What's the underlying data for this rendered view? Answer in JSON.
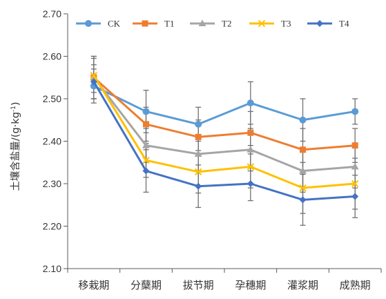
{
  "chart_data": {
    "type": "line",
    "title": "",
    "xlabel": "",
    "ylabel": "土壤含盐量/(g·kg",
    "ylabel_sup": "-1",
    "ylabel_end": ")",
    "ylim": [
      2.1,
      2.7
    ],
    "yticks": [
      "2.10",
      "2.20",
      "2.30",
      "2.40",
      "2.50",
      "2.60",
      "2.70"
    ],
    "categories": [
      "移栽期",
      "分蘖期",
      "拔节期",
      "孕穗期",
      "灌浆期",
      "成熟期"
    ],
    "grid": false,
    "legend_position": "top",
    "series": [
      {
        "name": "CK",
        "color": "#5b9bd5",
        "marker": "circle",
        "values": [
          2.53,
          2.47,
          2.44,
          2.49,
          2.45,
          2.47
        ],
        "errors": [
          0.04,
          0.05,
          0.04,
          0.05,
          0.05,
          0.03
        ]
      },
      {
        "name": "T1",
        "color": "#ed7d31",
        "marker": "square",
        "values": [
          2.55,
          2.44,
          2.41,
          2.42,
          2.38,
          2.39
        ],
        "errors": [
          0.05,
          0.04,
          0.04,
          0.05,
          0.05,
          0.04
        ]
      },
      {
        "name": "T2",
        "color": "#a5a5a5",
        "marker": "triangle",
        "values": [
          2.55,
          2.39,
          2.37,
          2.38,
          2.33,
          2.34
        ],
        "errors": [
          0.05,
          0.04,
          0.04,
          0.05,
          0.05,
          0.05
        ]
      },
      {
        "name": "T3",
        "color": "#ffc000",
        "marker": "x",
        "values": [
          2.555,
          2.355,
          2.328,
          2.34,
          2.29,
          2.3
        ],
        "errors": [
          0.04,
          0.04,
          0.05,
          0.05,
          0.06,
          0.06
        ]
      },
      {
        "name": "T4",
        "color": "#4472c4",
        "marker": "diamond",
        "values": [
          2.54,
          2.33,
          2.294,
          2.3,
          2.262,
          2.27
        ],
        "errors": [
          0.04,
          0.05,
          0.05,
          0.04,
          0.06,
          0.05
        ]
      }
    ]
  }
}
